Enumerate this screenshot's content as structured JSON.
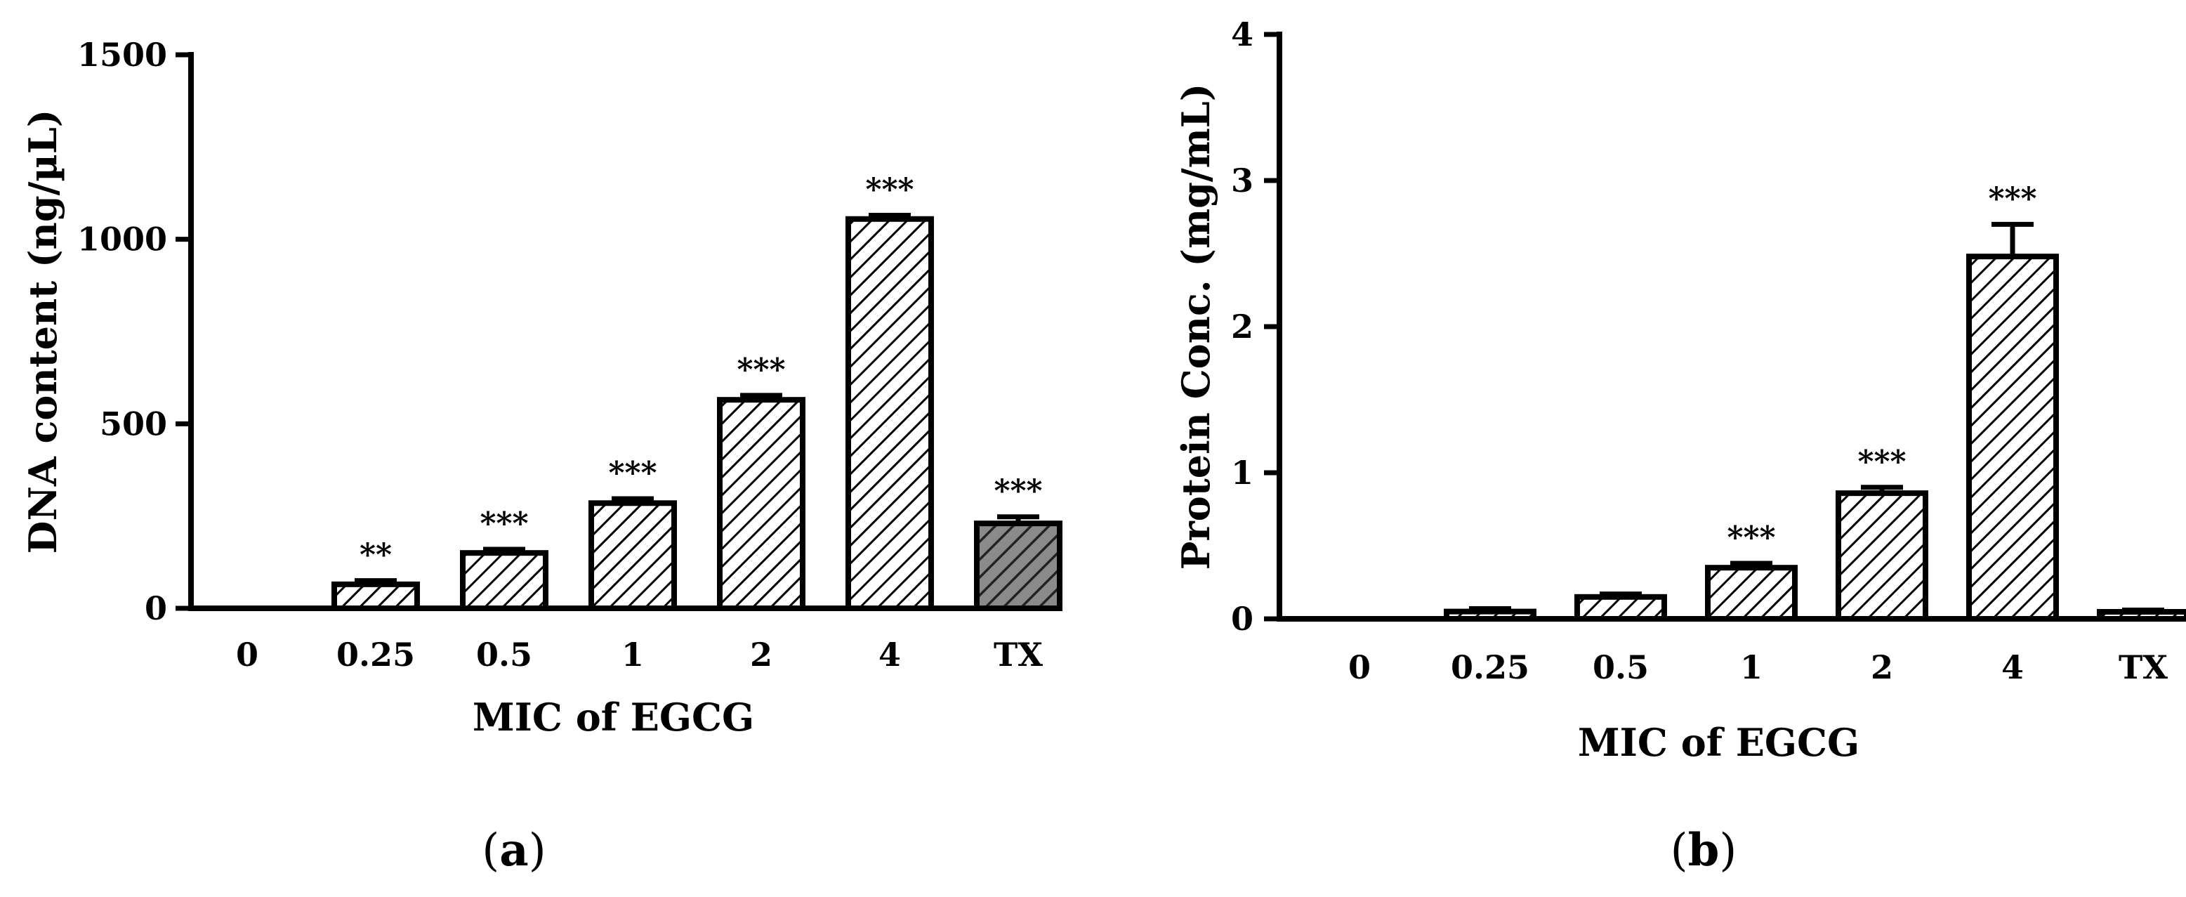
{
  "chart_data": [
    {
      "type": "bar",
      "panel_label": {
        "open": "(",
        "letter": "a",
        "close": ")"
      },
      "categories": [
        "0",
        "0.25",
        "0.5",
        "1",
        "2",
        "4",
        "TX"
      ],
      "values": [
        0,
        65,
        150,
        285,
        565,
        1055,
        230
      ],
      "errors": [
        0,
        10,
        10,
        12,
        12,
        10,
        18
      ],
      "significance": [
        "",
        "**",
        "***",
        "***",
        "***",
        "***",
        "***"
      ],
      "fills": [
        "hatch",
        "hatch",
        "hatch",
        "hatch",
        "hatch",
        "hatch",
        "hatch-dark"
      ],
      "xlabel": "MIC of EGCG",
      "ylabel": "DNA content (ng/µL)",
      "ylim": [
        0,
        1500
      ],
      "yticks": [
        0,
        500,
        1000,
        1500
      ],
      "grid": false
    },
    {
      "type": "bar",
      "panel_label": {
        "open": "(",
        "letter": "b",
        "close": ")"
      },
      "categories": [
        "0",
        "0.25",
        "0.5",
        "1",
        "2",
        "4",
        "TX"
      ],
      "values": [
        0,
        0.05,
        0.15,
        0.35,
        0.86,
        2.48,
        0.04
      ],
      "errors": [
        0,
        0.02,
        0.02,
        0.03,
        0.04,
        0.22,
        0.02
      ],
      "significance": [
        "",
        "",
        "",
        "***",
        "***",
        "***",
        ""
      ],
      "fills": [
        "hatch",
        "hatch",
        "hatch",
        "hatch",
        "hatch",
        "hatch",
        "hatch"
      ],
      "xlabel": "MIC of EGCG",
      "ylabel": "Protein Conc. (mg/mL)",
      "ylim": [
        0,
        4
      ],
      "yticks": [
        0,
        1,
        2,
        3,
        4
      ],
      "grid": false
    }
  ]
}
